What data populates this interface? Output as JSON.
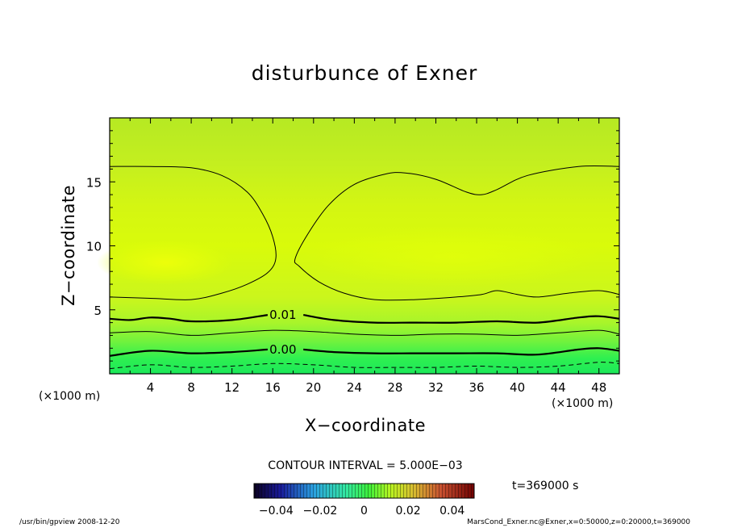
{
  "chart_data": {
    "type": "contour",
    "title": "disturbunce of Exner",
    "xlabel": "X−coordinate",
    "ylabel": "Z−coordinate",
    "x_unit_left": "(×1000 m)",
    "x_unit_right": "(×1000 m)",
    "xlim": [
      0,
      50
    ],
    "ylim": [
      0,
      20
    ],
    "x_ticks": [
      4,
      8,
      12,
      16,
      20,
      24,
      28,
      32,
      36,
      40,
      44,
      48
    ],
    "y_ticks": [
      5,
      10,
      15
    ],
    "contour_interval_text": "CONTOUR INTERVAL = 5.000E−03",
    "contour_labels": [
      {
        "text": "0.01",
        "value": 0.01,
        "x": 17.0,
        "z": 4.6
      },
      {
        "text": "0.00",
        "value": 0.0,
        "x": 17.0,
        "z": 1.9
      }
    ],
    "contours": [
      {
        "value": 0.02,
        "style": "thin",
        "points": [
          [
            0,
            16.2
          ],
          [
            4,
            16.2
          ],
          [
            8,
            16.1
          ],
          [
            11,
            15.5
          ],
          [
            13.5,
            14.2
          ],
          [
            15,
            12.5
          ],
          [
            16,
            10.7
          ],
          [
            16.3,
            9.0
          ],
          [
            15.5,
            7.9
          ],
          [
            13.5,
            7.0
          ],
          [
            11,
            6.3
          ],
          [
            8,
            5.8
          ],
          [
            4,
            5.9
          ],
          [
            0,
            6.0
          ]
        ]
      },
      {
        "value": 0.02,
        "style": "thin",
        "points": [
          [
            50,
            16.2
          ],
          [
            46,
            16.2
          ],
          [
            41,
            15.5
          ],
          [
            38,
            14.4
          ],
          [
            36.5,
            14.0
          ],
          [
            35,
            14.2
          ],
          [
            32,
            15.2
          ],
          [
            29,
            15.7
          ],
          [
            27,
            15.6
          ],
          [
            24,
            14.8
          ],
          [
            21.5,
            13.2
          ],
          [
            19.5,
            11.0
          ],
          [
            18.2,
            9.0
          ],
          [
            18.6,
            8.4
          ],
          [
            20.5,
            7.2
          ],
          [
            23,
            6.3
          ],
          [
            26,
            5.8
          ],
          [
            30,
            5.8
          ],
          [
            34,
            6.0
          ],
          [
            36.5,
            6.2
          ],
          [
            38,
            6.5
          ],
          [
            40,
            6.2
          ],
          [
            42,
            6.0
          ],
          [
            45,
            6.3
          ],
          [
            48,
            6.5
          ],
          [
            50,
            6.2
          ]
        ]
      },
      {
        "value": 0.01,
        "style": "bold",
        "points": [
          [
            0,
            4.3
          ],
          [
            2,
            4.2
          ],
          [
            4,
            4.4
          ],
          [
            6,
            4.3
          ],
          [
            8,
            4.1
          ],
          [
            12,
            4.2
          ],
          [
            15.5,
            4.6
          ]
        ]
      },
      {
        "value": 0.01,
        "style": "bold",
        "points": [
          [
            19,
            4.6
          ],
          [
            22,
            4.2
          ],
          [
            26,
            4.0
          ],
          [
            30,
            4.0
          ],
          [
            34,
            4.0
          ],
          [
            38,
            4.1
          ],
          [
            42,
            4.0
          ],
          [
            46,
            4.4
          ],
          [
            48,
            4.5
          ],
          [
            50,
            4.3
          ]
        ]
      },
      {
        "value": 0.005,
        "style": "thin",
        "points": [
          [
            0,
            3.2
          ],
          [
            4,
            3.3
          ],
          [
            8,
            3.0
          ],
          [
            12,
            3.2
          ],
          [
            16,
            3.4
          ],
          [
            20,
            3.3
          ],
          [
            24,
            3.1
          ],
          [
            28,
            3.0
          ],
          [
            32,
            3.1
          ],
          [
            36,
            3.1
          ],
          [
            40,
            3.0
          ],
          [
            44,
            3.2
          ],
          [
            48,
            3.4
          ],
          [
            50,
            3.1
          ]
        ]
      },
      {
        "value": 0.0,
        "style": "bold",
        "points": [
          [
            0,
            1.4
          ],
          [
            4,
            1.8
          ],
          [
            8,
            1.6
          ],
          [
            12,
            1.7
          ],
          [
            15.5,
            1.9
          ]
        ]
      },
      {
        "value": 0.0,
        "style": "bold",
        "points": [
          [
            19,
            1.9
          ],
          [
            22,
            1.7
          ],
          [
            26,
            1.6
          ],
          [
            30,
            1.6
          ],
          [
            34,
            1.6
          ],
          [
            38,
            1.6
          ],
          [
            42,
            1.5
          ],
          [
            46,
            1.9
          ],
          [
            48,
            2.0
          ],
          [
            50,
            1.8
          ]
        ]
      },
      {
        "value": -0.005,
        "style": "dashed",
        "points": [
          [
            0,
            0.4
          ],
          [
            4,
            0.7
          ],
          [
            8,
            0.5
          ],
          [
            12,
            0.6
          ],
          [
            16,
            0.8
          ],
          [
            20,
            0.7
          ],
          [
            24,
            0.5
          ],
          [
            28,
            0.5
          ],
          [
            32,
            0.5
          ],
          [
            36,
            0.6
          ],
          [
            40,
            0.5
          ],
          [
            44,
            0.6
          ],
          [
            48,
            0.9
          ],
          [
            50,
            0.8
          ]
        ]
      }
    ],
    "colorbar": {
      "min": -0.05,
      "max": 0.05,
      "ticks": [
        {
          "text": "−0.04",
          "value": -0.04
        },
        {
          "text": "−0.02",
          "value": -0.02
        },
        {
          "text": "0",
          "value": 0
        },
        {
          "text": "0.02",
          "value": 0.02
        },
        {
          "text": "0.04",
          "value": 0.04
        }
      ]
    },
    "time_label": "t=369000 s",
    "footer_left": "/usr/bin/gpview   2008-12-20",
    "footer_right": "MarsCond_Exner.nc@Exner,x=0:50000,z=0:20000,t=369000"
  }
}
